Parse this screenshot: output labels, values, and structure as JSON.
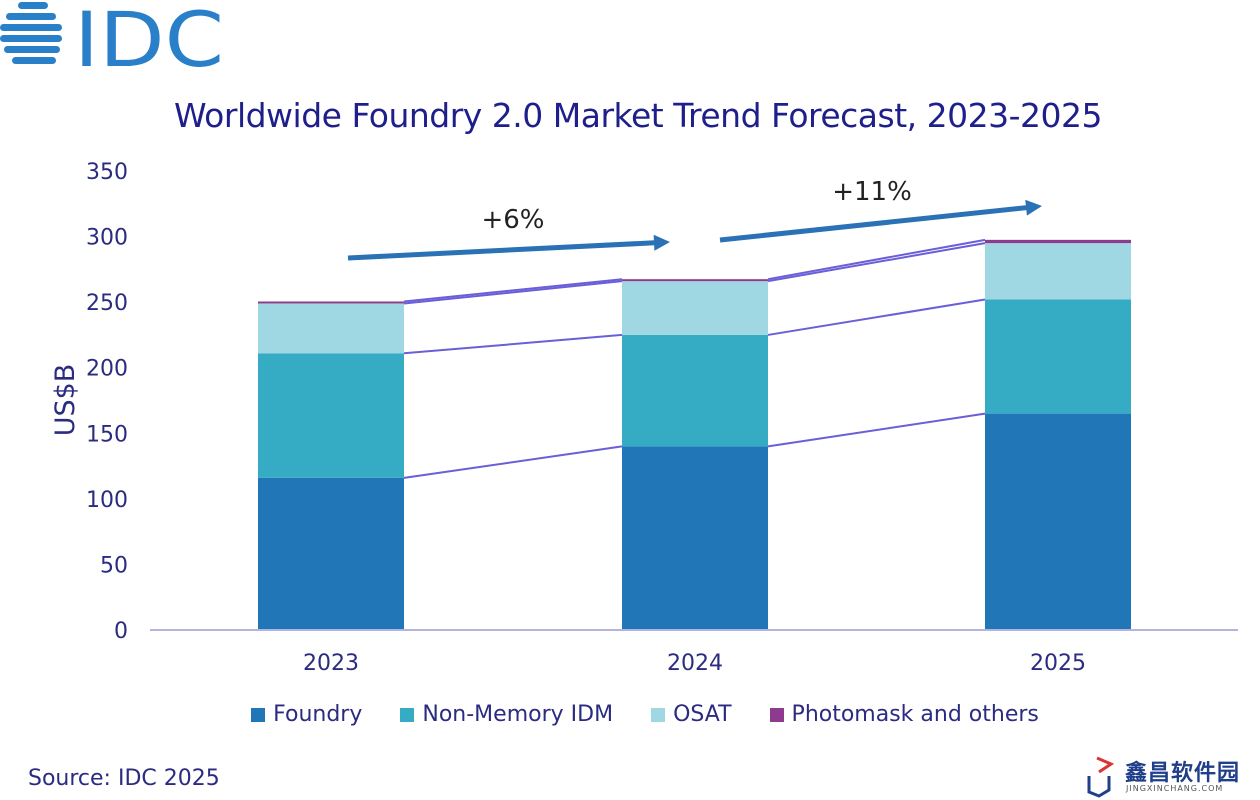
{
  "brand": {
    "logo_text": "IDC",
    "logo_color": "#2a7fc9"
  },
  "source": "Source: IDC 2025",
  "watermark": {
    "text": "鑫昌软件园",
    "subtext": "JINGXINCHANG.COM"
  },
  "chart_data": {
    "type": "bar",
    "stacked": true,
    "title": "Worldwide Foundry 2.0 Market Trend Forecast, 2023-2025",
    "xlabel": "",
    "ylabel": "US$B",
    "ylim": [
      0,
      350
    ],
    "yticks": [
      0,
      50,
      100,
      150,
      200,
      250,
      300,
      350
    ],
    "categories": [
      "2023",
      "2024",
      "2025"
    ],
    "series": [
      {
        "name": "Foundry",
        "color": "#2176b8",
        "values": [
          116,
          140,
          165
        ]
      },
      {
        "name": "Non-Memory IDM",
        "color": "#35abc4",
        "values": [
          95,
          85,
          87
        ]
      },
      {
        "name": "OSAT",
        "color": "#9fd8e2",
        "values": [
          38,
          41,
          43
        ]
      },
      {
        "name": "Photomask and others",
        "color": "#8e3a8e",
        "values": [
          1.5,
          1.5,
          2.5
        ]
      }
    ],
    "series_lines": true,
    "grid": false,
    "legend": "bottom",
    "annotations": [
      {
        "text": "+6%",
        "from": "2023",
        "to": "2024"
      },
      {
        "text": "+11%",
        "from": "2024",
        "to": "2025"
      }
    ]
  }
}
